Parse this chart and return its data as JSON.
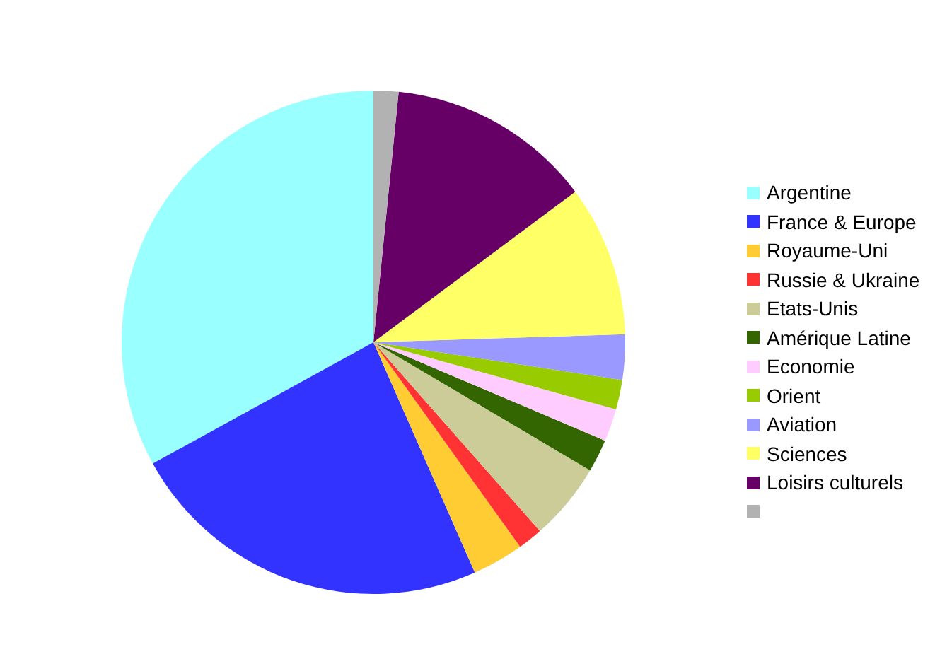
{
  "chart_data": {
    "type": "pie",
    "categories": [
      "Argentine",
      "France & Europe",
      "Royaume-Uni",
      "Russie & Ukraine",
      "Etats-Unis",
      "Amérique Latine",
      "Economie",
      "Orient",
      "Aviation",
      "Sciences",
      "Loisirs culturels",
      null
    ],
    "values": [
      33.0,
      23.6,
      3.3,
      1.6,
      5.0,
      2.1,
      2.1,
      1.9,
      2.9,
      9.7,
      13.2,
      1.6
    ],
    "colors": [
      "#99ffff",
      "#3333ff",
      "#ffcc33",
      "#ff3333",
      "#cccc99",
      "#336600",
      "#ffccff",
      "#99cc00",
      "#9999ff",
      "#ffff66",
      "#660066",
      "#b2b2b2"
    ],
    "legend": "right"
  }
}
